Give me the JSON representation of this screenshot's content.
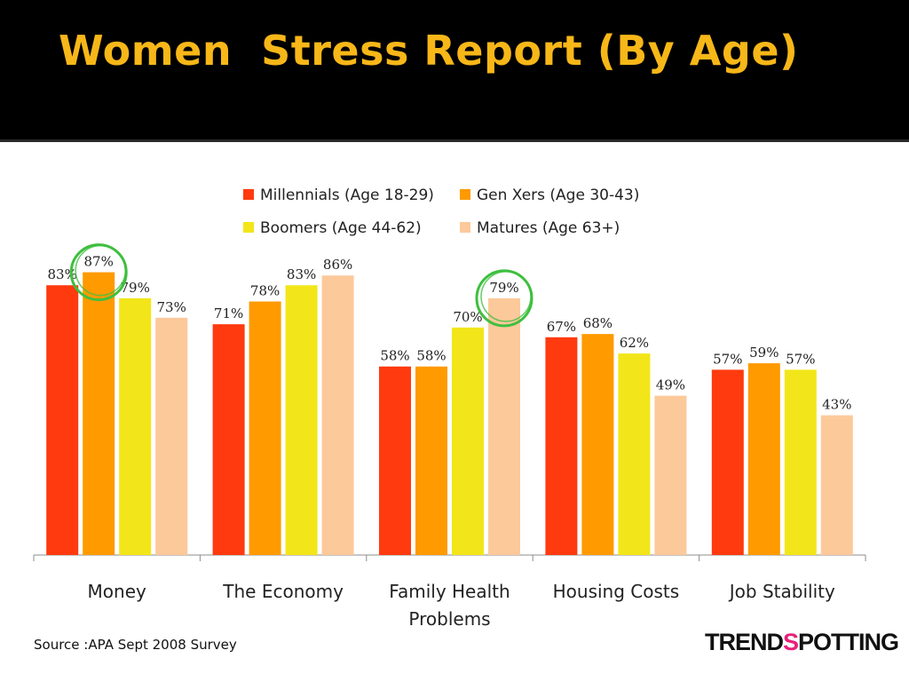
{
  "title": "Women  Stress Report (By Age)",
  "source": "Source :APA Sept 2008 Survey",
  "logo": {
    "left": "TREND",
    "mid": "S",
    "right": "POTTING"
  },
  "chart_data": {
    "type": "bar",
    "categories": [
      "Money",
      "The Economy",
      "Family Health Problems",
      "Housing Costs",
      "Job Stability"
    ],
    "category_lines": [
      [
        "Money"
      ],
      [
        "The Economy"
      ],
      [
        "Family Health",
        "Problems"
      ],
      [
        "Housing Costs"
      ],
      [
        "Job Stability"
      ]
    ],
    "series": [
      {
        "name": "Millennials (Age 18-29)",
        "color": "#ff3a0f",
        "values": [
          83,
          71,
          58,
          67,
          57
        ]
      },
      {
        "name": "Gen Xers (Age 30-43)",
        "color": "#ff9a00",
        "values": [
          87,
          78,
          58,
          68,
          59
        ]
      },
      {
        "name": "Boomers (Age 44-62)",
        "color": "#f2e61a",
        "values": [
          79,
          83,
          70,
          62,
          57
        ]
      },
      {
        "name": "Matures (Age 63+)",
        "color": "#fcc99b",
        "values": [
          73,
          86,
          79,
          49,
          43
        ]
      }
    ],
    "value_suffix": "%",
    "ylim": [
      0,
      100
    ],
    "legend": "top-center",
    "highlighted": [
      {
        "category": "Money",
        "series": "Gen Xers (Age 30-43)"
      },
      {
        "category": "Family Health Problems",
        "series": "Matures (Age 63+)"
      }
    ],
    "highlight_color": "#3fbf3f"
  }
}
